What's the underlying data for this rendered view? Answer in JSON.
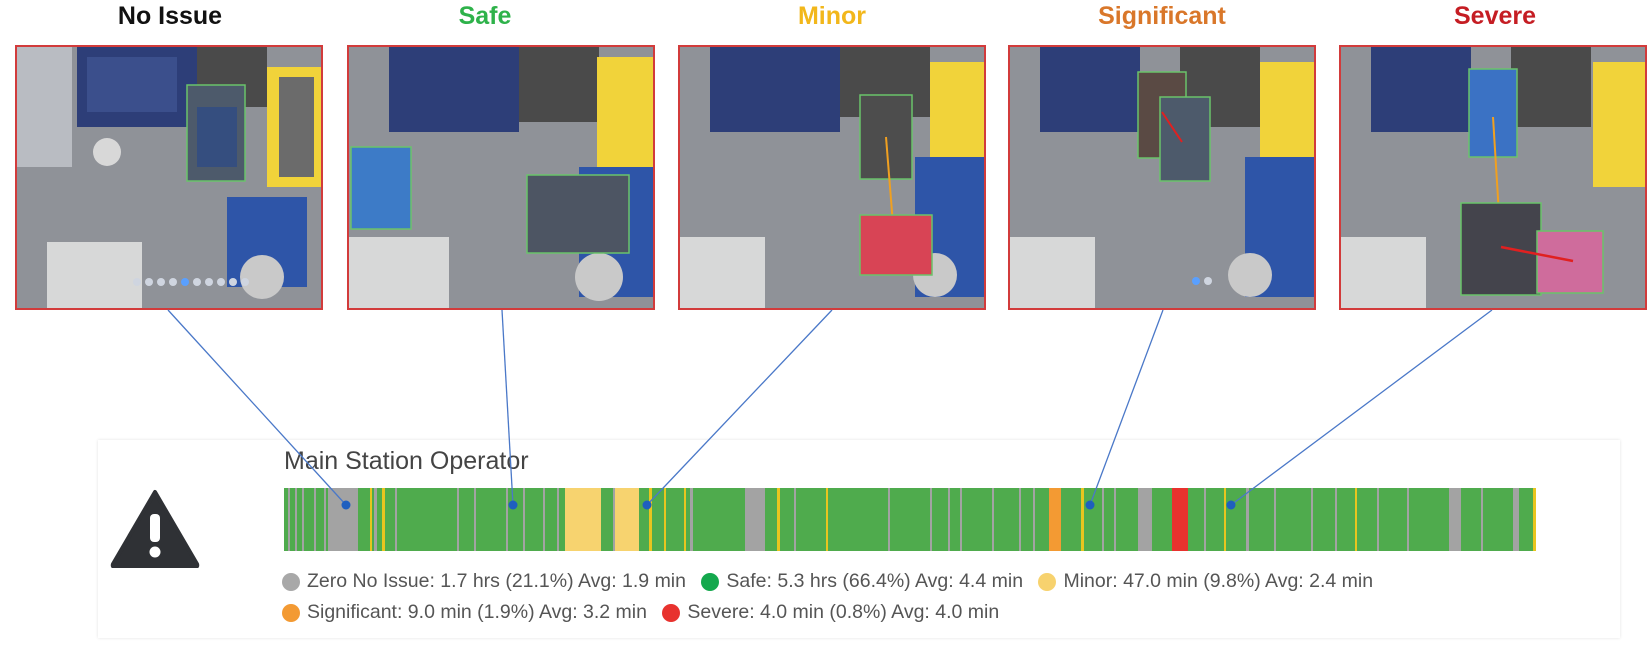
{
  "categories": [
    {
      "key": "no_issue",
      "label": "No Issue",
      "color": "#111111"
    },
    {
      "key": "safe",
      "label": "Safe",
      "color": "#2eb24a"
    },
    {
      "key": "minor",
      "label": "Minor",
      "color": "#f2b71b"
    },
    {
      "key": "significant",
      "label": "Significant",
      "color": "#d9772a"
    },
    {
      "key": "severe",
      "label": "Severe",
      "color": "#c51d23"
    }
  ],
  "operator": {
    "title": "Main Station Operator"
  },
  "timeline": {
    "colors": {
      "none": "#a3a3a3",
      "safe": "#4fab4d",
      "minor": "#f7d36f",
      "minor_strong": "#e8c51f",
      "significant": "#f39a33",
      "severe": "#e8322e"
    }
  },
  "legend": [
    {
      "key": "none",
      "color": "#a8a8a8",
      "text": "Zero No Issue: 1.7 hrs (21.1%) Avg: 1.9 min"
    },
    {
      "key": "safe",
      "color": "#14a84d",
      "text": "Safe: 5.3 hrs (66.4%) Avg: 4.4 min"
    },
    {
      "key": "minor",
      "color": "#f7d26e",
      "text": "Minor: 47.0 min (9.8%) Avg: 2.4 min"
    },
    {
      "key": "significant",
      "color": "#f39a33",
      "text": "Significant: 9.0 min (1.9%) Avg: 3.2 min"
    },
    {
      "key": "severe",
      "color": "#e8322e",
      "text": "Severe:  4.0 min (0.8%) Avg: 4.0 min"
    }
  ]
}
